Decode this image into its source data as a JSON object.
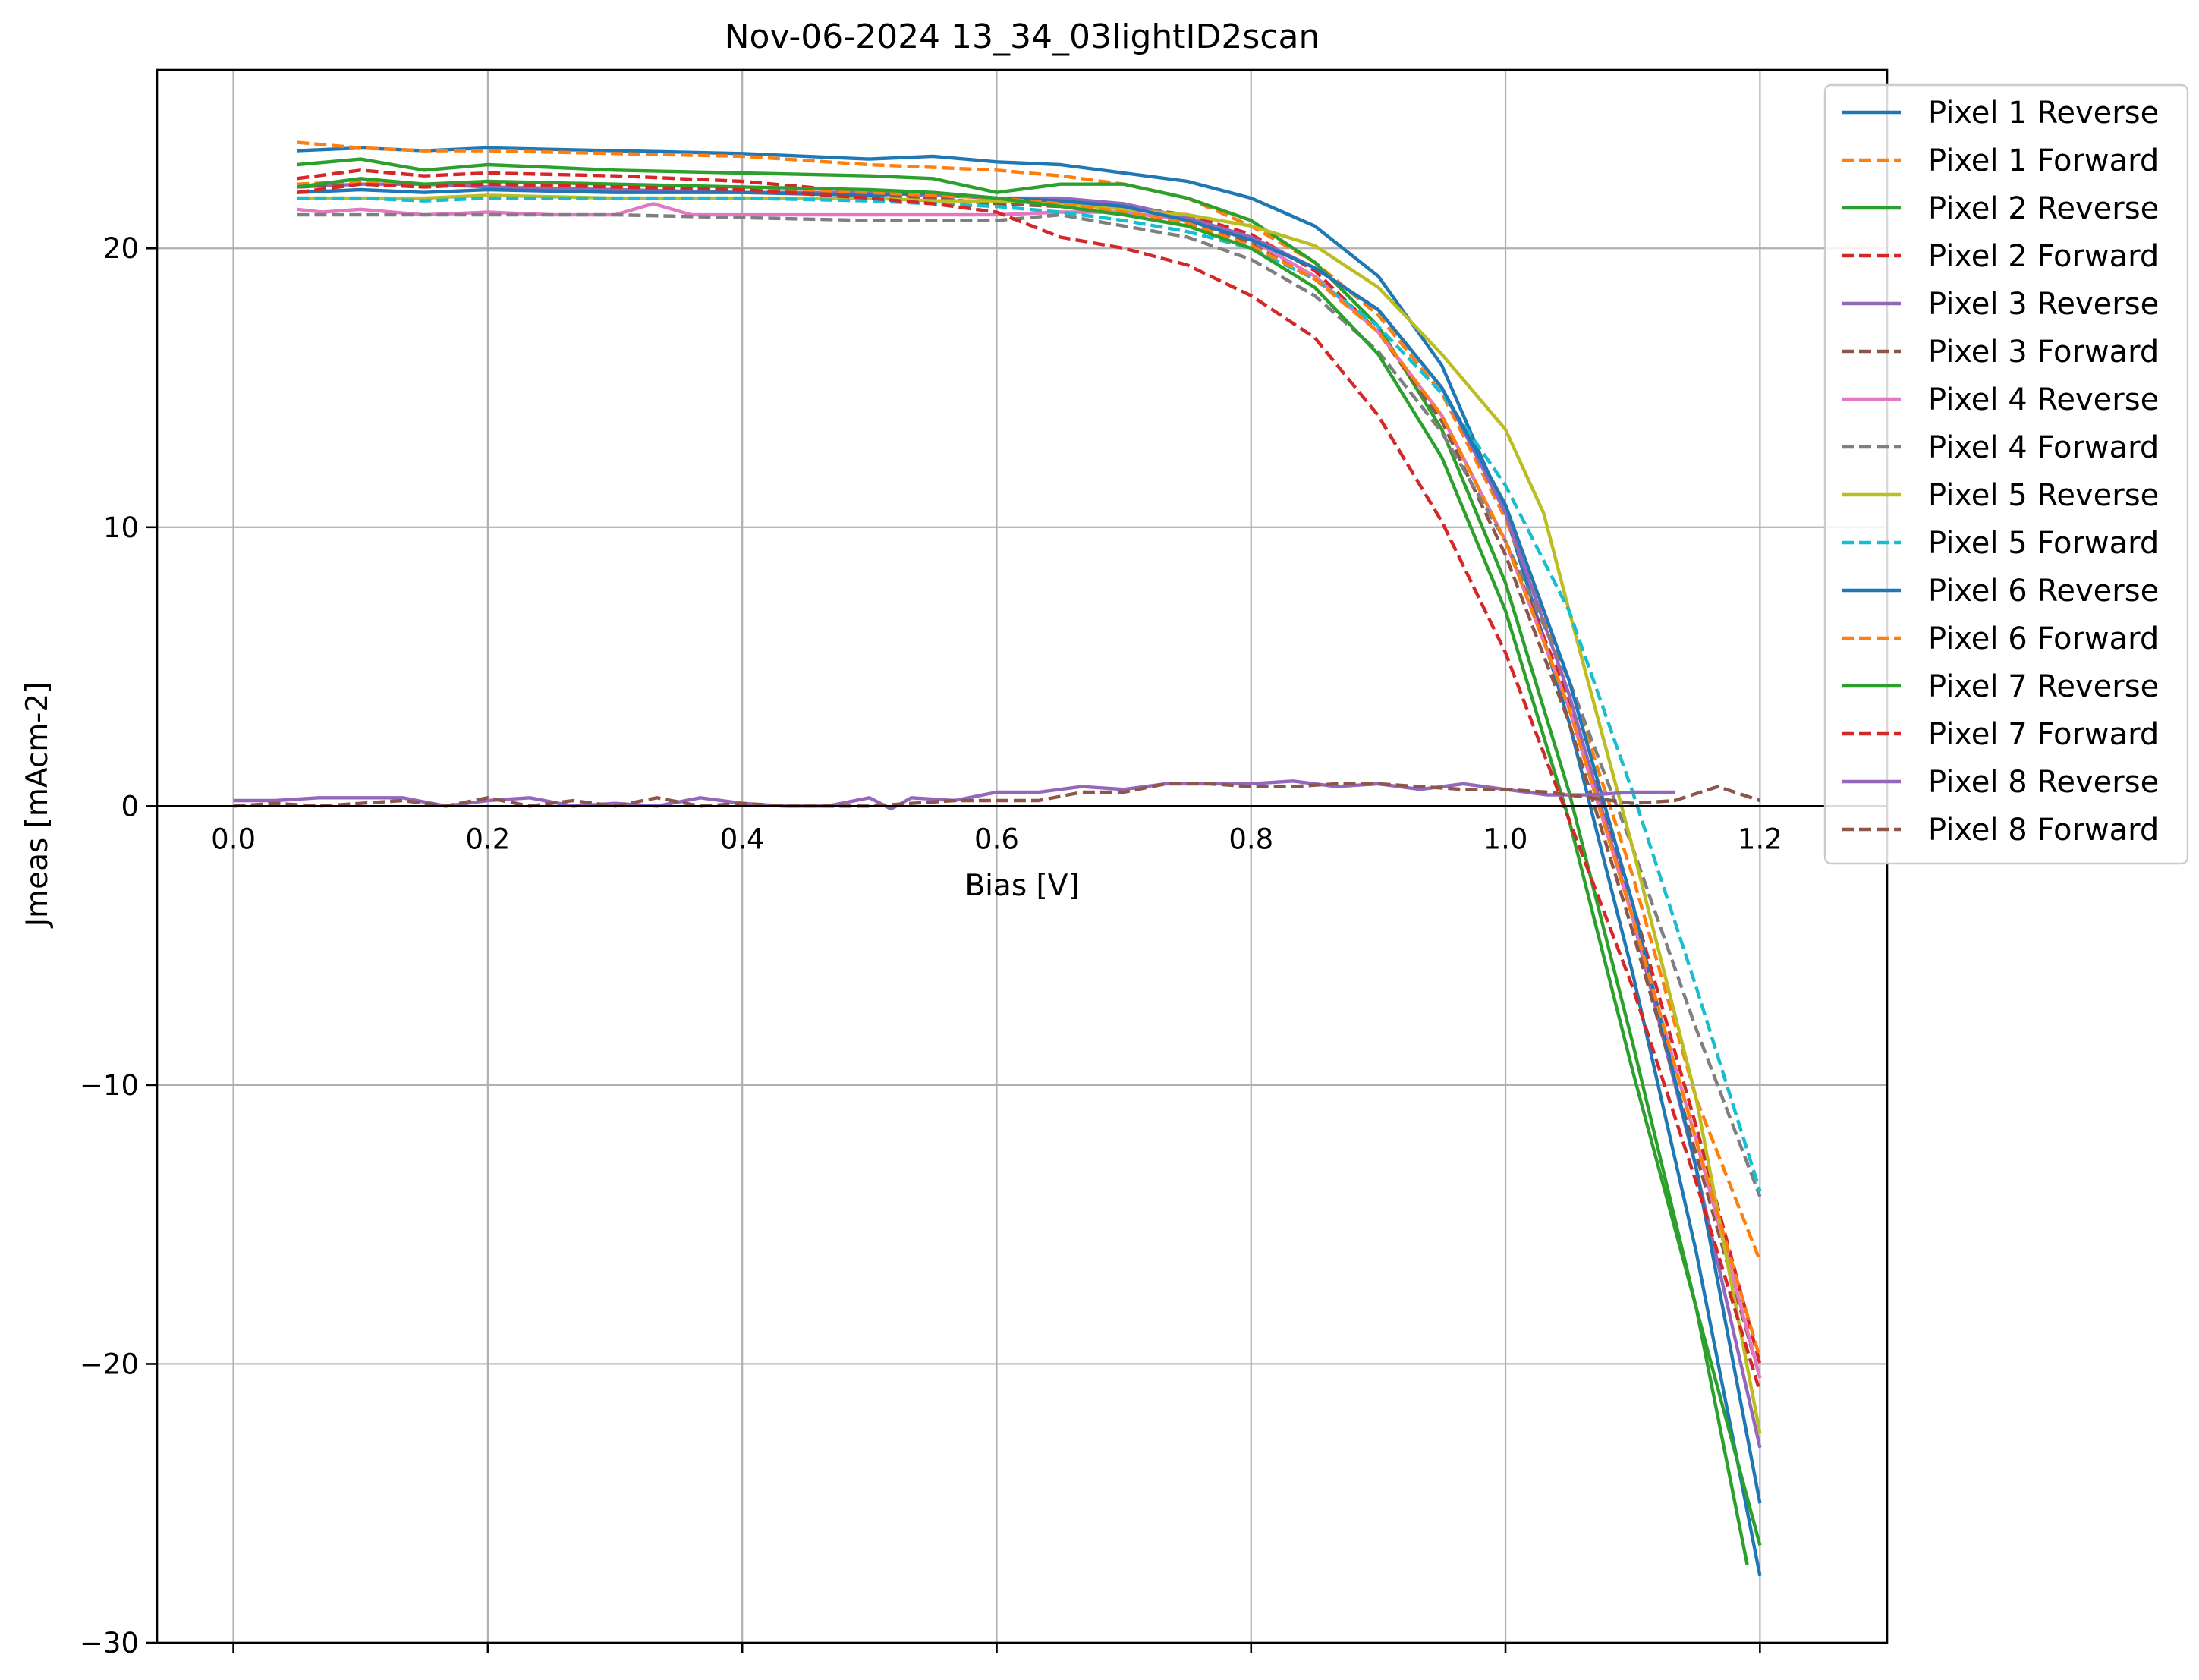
{
  "chart_data": {
    "type": "line",
    "title": "Nov-06-2024 13_34_03lightID2scan",
    "xlabel": "Bias [V]",
    "ylabel": "Jmeas [mAcm-2]",
    "xlim": [
      -0.06,
      1.3
    ],
    "ylim": [
      -30,
      26.4
    ],
    "xticks": [
      0.0,
      0.2,
      0.4,
      0.6,
      0.8,
      1.0,
      1.2
    ],
    "xtick_labels": [
      "0.0",
      "0.2",
      "0.4",
      "0.6",
      "0.8",
      "1.0",
      "1.2"
    ],
    "yticks": [
      20,
      10,
      0,
      -10,
      -20,
      -30
    ],
    "ytick_labels": [
      "20",
      "10",
      "0",
      "−10",
      "−20",
      "−30"
    ],
    "grid": true,
    "legend_position": "top-right",
    "series": [
      {
        "name": "Pixel 1 Reverse",
        "color": "#1f77b4",
        "dash": "solid",
        "x": [
          0.05,
          0.1,
          0.15,
          0.2,
          0.3,
          0.4,
          0.5,
          0.55,
          0.6,
          0.65,
          0.7,
          0.75,
          0.8,
          0.85,
          0.9,
          0.95,
          1.0,
          1.05,
          1.1,
          1.15,
          1.2
        ],
        "y": [
          23.5,
          23.6,
          23.5,
          23.6,
          23.5,
          23.4,
          23.2,
          23.3,
          23.1,
          23.0,
          22.7,
          22.4,
          21.8,
          20.8,
          19.0,
          15.8,
          10.5,
          3.0,
          -6.0,
          -16.0,
          -27.6
        ]
      },
      {
        "name": "Pixel 1 Forward",
        "color": "#ff7f0e",
        "dash": "dashed",
        "x": [
          0.05,
          0.1,
          0.15,
          0.2,
          0.3,
          0.4,
          0.5,
          0.55,
          0.6,
          0.65,
          0.7,
          0.75,
          0.8,
          0.85,
          0.9,
          0.95,
          1.0,
          1.05,
          1.1,
          1.15,
          1.2
        ],
        "y": [
          23.8,
          23.6,
          23.5,
          23.5,
          23.4,
          23.3,
          23.0,
          22.9,
          22.8,
          22.6,
          22.3,
          21.8,
          20.8,
          19.5,
          17.6,
          14.8,
          10.3,
          4.5,
          -2.5,
          -10.5,
          -16.3
        ]
      },
      {
        "name": "Pixel 2 Reverse",
        "color": "#2ca02c",
        "dash": "solid",
        "x": [
          0.05,
          0.1,
          0.15,
          0.2,
          0.3,
          0.4,
          0.5,
          0.55,
          0.6,
          0.65,
          0.7,
          0.75,
          0.8,
          0.85,
          0.9,
          0.95,
          1.0,
          1.05,
          1.1,
          1.15,
          1.19
        ],
        "y": [
          23.0,
          23.2,
          22.8,
          23.0,
          22.8,
          22.7,
          22.6,
          22.5,
          22.0,
          22.3,
          22.3,
          21.8,
          21.0,
          19.5,
          17.2,
          13.5,
          8.0,
          0.5,
          -8.5,
          -18.0,
          -27.2
        ]
      },
      {
        "name": "Pixel 2 Forward",
        "color": "#d62728",
        "dash": "dashed",
        "x": [
          0.05,
          0.1,
          0.15,
          0.2,
          0.3,
          0.4,
          0.5,
          0.55,
          0.6,
          0.65,
          0.7,
          0.75,
          0.8,
          0.85,
          0.9,
          0.95,
          1.0,
          1.05,
          1.1,
          1.15,
          1.2
        ],
        "y": [
          22.5,
          22.8,
          22.6,
          22.7,
          22.6,
          22.4,
          22.0,
          21.8,
          21.6,
          21.8,
          21.5,
          21.2,
          20.5,
          19.2,
          17.0,
          14.0,
          9.5,
          3.8,
          -3.5,
          -11.5,
          -20.0
        ]
      },
      {
        "name": "Pixel 3 Reverse",
        "color": "#9467bd",
        "dash": "solid",
        "x": [
          0.05,
          0.1,
          0.15,
          0.2,
          0.3,
          0.4,
          0.5,
          0.55,
          0.6,
          0.65,
          0.7,
          0.75,
          0.8,
          0.85,
          0.9,
          0.95,
          1.0,
          1.05,
          1.1,
          1.15,
          1.2
        ],
        "y": [
          22.2,
          22.3,
          22.3,
          22.2,
          22.1,
          22.0,
          22.0,
          21.9,
          21.8,
          21.8,
          21.6,
          21.1,
          20.4,
          19.3,
          17.8,
          15.0,
          10.5,
          4.0,
          -4.0,
          -13.0,
          -23.0
        ]
      },
      {
        "name": "Pixel 3 Forward",
        "color": "#8c564b",
        "dash": "dashed",
        "x": [
          0.05,
          0.1,
          0.15,
          0.2,
          0.3,
          0.4,
          0.5,
          0.55,
          0.6,
          0.65,
          0.7,
          0.75,
          0.8,
          0.85,
          0.9,
          0.95,
          1.0,
          1.05,
          1.1,
          1.15,
          1.2
        ],
        "y": [
          22.2,
          22.3,
          22.2,
          22.3,
          22.2,
          22.1,
          21.9,
          21.8,
          21.6,
          21.5,
          21.3,
          20.9,
          20.2,
          19.0,
          17.0,
          13.8,
          9.0,
          3.0,
          -4.5,
          -12.5,
          -20.5
        ]
      },
      {
        "name": "Pixel 4 Reverse",
        "color": "#e377c2",
        "dash": "solid",
        "x": [
          0.05,
          0.07,
          0.1,
          0.15,
          0.2,
          0.25,
          0.3,
          0.33,
          0.36,
          0.4,
          0.5,
          0.6,
          0.65,
          0.7,
          0.75,
          0.8,
          0.85,
          0.9,
          0.95,
          1.0,
          1.05,
          1.1,
          1.15,
          1.2
        ],
        "y": [
          21.4,
          21.3,
          21.4,
          21.2,
          21.3,
          21.2,
          21.2,
          21.6,
          21.2,
          21.2,
          21.2,
          21.2,
          21.3,
          21.3,
          21.0,
          20.3,
          19.0,
          17.0,
          14.0,
          9.5,
          3.5,
          -4.0,
          -12.0,
          -20.5
        ]
      },
      {
        "name": "Pixel 4 Forward",
        "color": "#7f7f7f",
        "dash": "dashed",
        "x": [
          0.05,
          0.1,
          0.15,
          0.2,
          0.3,
          0.4,
          0.5,
          0.55,
          0.6,
          0.65,
          0.7,
          0.75,
          0.8,
          0.85,
          0.9,
          0.95,
          1.0,
          1.05,
          1.1,
          1.15,
          1.2
        ],
        "y": [
          21.2,
          21.2,
          21.2,
          21.2,
          21.2,
          21.1,
          21.0,
          21.0,
          21.0,
          21.2,
          20.8,
          20.4,
          19.6,
          18.3,
          16.3,
          13.4,
          9.5,
          4.5,
          -1.5,
          -8.0,
          -14.0
        ]
      },
      {
        "name": "Pixel 5 Reverse",
        "color": "#bcbd22",
        "dash": "solid",
        "x": [
          0.05,
          0.1,
          0.15,
          0.2,
          0.3,
          0.4,
          0.5,
          0.55,
          0.6,
          0.65,
          0.7,
          0.75,
          0.8,
          0.85,
          0.9,
          0.95,
          1.0,
          1.03,
          1.05,
          1.1,
          1.15,
          1.2
        ],
        "y": [
          21.8,
          21.8,
          21.8,
          21.9,
          21.8,
          21.8,
          21.8,
          21.7,
          21.7,
          21.6,
          21.4,
          21.2,
          20.8,
          20.1,
          18.6,
          16.2,
          13.5,
          10.5,
          7.0,
          -1.5,
          -10.5,
          -22.5
        ]
      },
      {
        "name": "Pixel 5 Forward",
        "color": "#17becf",
        "dash": "dashed",
        "x": [
          0.05,
          0.1,
          0.15,
          0.2,
          0.3,
          0.4,
          0.5,
          0.55,
          0.6,
          0.65,
          0.7,
          0.75,
          0.8,
          0.85,
          0.9,
          0.95,
          1.0,
          1.05,
          1.1,
          1.15,
          1.2
        ],
        "y": [
          21.8,
          21.8,
          21.7,
          21.8,
          21.8,
          21.8,
          21.7,
          21.6,
          21.5,
          21.3,
          21.0,
          20.6,
          20.0,
          18.9,
          17.2,
          14.8,
          11.5,
          7.0,
          0.5,
          -6.5,
          -13.8
        ]
      },
      {
        "name": "Pixel 6 Reverse",
        "color": "#1f77b4",
        "dash": "solid",
        "x": [
          0.05,
          0.1,
          0.15,
          0.2,
          0.3,
          0.4,
          0.5,
          0.55,
          0.6,
          0.65,
          0.7,
          0.75,
          0.8,
          0.85,
          0.9,
          0.95,
          1.0,
          1.05,
          1.1,
          1.15,
          1.2
        ],
        "y": [
          22.0,
          22.1,
          22.0,
          22.1,
          22.0,
          22.0,
          21.9,
          22.0,
          21.8,
          21.7,
          21.5,
          21.0,
          20.3,
          19.3,
          17.8,
          15.0,
          10.8,
          4.5,
          -3.5,
          -13.0,
          -25.0
        ]
      },
      {
        "name": "Pixel 6 Forward",
        "color": "#ff7f0e",
        "dash": "dashed",
        "x": [
          0.05,
          0.1,
          0.15,
          0.2,
          0.3,
          0.4,
          0.5,
          0.55,
          0.6,
          0.65,
          0.7,
          0.75,
          0.8,
          0.85,
          0.9,
          0.95,
          1.0,
          1.05,
          1.1,
          1.15,
          1.2
        ],
        "y": [
          22.3,
          22.4,
          22.3,
          22.3,
          22.2,
          22.2,
          22.0,
          21.9,
          21.8,
          21.6,
          21.3,
          20.9,
          20.1,
          18.9,
          17.0,
          14.0,
          9.5,
          3.5,
          -4.0,
          -12.0,
          -19.8
        ]
      },
      {
        "name": "Pixel 7 Reverse",
        "color": "#2ca02c",
        "dash": "solid",
        "x": [
          0.05,
          0.1,
          0.15,
          0.2,
          0.3,
          0.4,
          0.5,
          0.55,
          0.6,
          0.65,
          0.7,
          0.75,
          0.8,
          0.85,
          0.9,
          0.95,
          1.0,
          1.05,
          1.1,
          1.15,
          1.2
        ],
        "y": [
          22.2,
          22.5,
          22.3,
          22.4,
          22.3,
          22.2,
          22.1,
          22.0,
          21.8,
          21.5,
          21.2,
          20.8,
          20.0,
          18.6,
          16.2,
          12.5,
          7.0,
          -0.5,
          -9.5,
          -18.0,
          -26.5
        ]
      },
      {
        "name": "Pixel 7 Forward",
        "color": "#d62728",
        "dash": "dashed",
        "x": [
          0.05,
          0.1,
          0.15,
          0.2,
          0.3,
          0.4,
          0.5,
          0.55,
          0.6,
          0.65,
          0.7,
          0.75,
          0.8,
          0.85,
          0.9,
          0.95,
          1.0,
          1.05,
          1.1,
          1.15,
          1.2
        ],
        "y": [
          22.0,
          22.3,
          22.2,
          22.3,
          22.2,
          22.1,
          21.8,
          21.6,
          21.3,
          20.4,
          20.0,
          19.4,
          18.3,
          16.8,
          14.0,
          10.2,
          5.5,
          -0.5,
          -6.5,
          -13.5,
          -21.0
        ]
      },
      {
        "name": "Pixel 8 Reverse",
        "color": "#9467bd",
        "dash": "solid",
        "x": [
          0.0,
          0.033,
          0.067,
          0.1,
          0.133,
          0.167,
          0.2,
          0.233,
          0.267,
          0.3,
          0.333,
          0.367,
          0.4,
          0.433,
          0.467,
          0.5,
          0.517,
          0.533,
          0.567,
          0.6,
          0.633,
          0.667,
          0.7,
          0.733,
          0.767,
          0.8,
          0.833,
          0.867,
          0.9,
          0.933,
          0.967,
          1.0,
          1.033,
          1.067,
          1.1,
          1.133
        ],
        "y": [
          0.2,
          0.2,
          0.3,
          0.3,
          0.3,
          0.0,
          0.2,
          0.3,
          0.0,
          0.1,
          0.0,
          0.3,
          0.1,
          0.0,
          0.0,
          0.3,
          -0.1,
          0.3,
          0.2,
          0.5,
          0.5,
          0.7,
          0.6,
          0.8,
          0.8,
          0.8,
          0.9,
          0.7,
          0.8,
          0.6,
          0.8,
          0.6,
          0.4,
          0.4,
          0.5,
          0.5
        ]
      },
      {
        "name": "Pixel 8 Forward",
        "color": "#8c564b",
        "dash": "dashed",
        "x": [
          0.0,
          0.033,
          0.067,
          0.1,
          0.133,
          0.167,
          0.2,
          0.233,
          0.267,
          0.3,
          0.333,
          0.367,
          0.4,
          0.433,
          0.467,
          0.5,
          0.533,
          0.567,
          0.6,
          0.633,
          0.667,
          0.7,
          0.733,
          0.767,
          0.8,
          0.833,
          0.867,
          0.9,
          0.933,
          0.967,
          1.0,
          1.033,
          1.067,
          1.1,
          1.133,
          1.167,
          1.2
        ],
        "y": [
          0.0,
          0.1,
          0.0,
          0.1,
          0.2,
          0.0,
          0.3,
          0.0,
          0.2,
          0.0,
          0.3,
          0.0,
          0.1,
          0.0,
          0.0,
          0.0,
          0.1,
          0.2,
          0.2,
          0.2,
          0.5,
          0.5,
          0.8,
          0.8,
          0.7,
          0.7,
          0.8,
          0.8,
          0.7,
          0.6,
          0.6,
          0.5,
          0.3,
          0.1,
          0.2,
          0.7,
          0.2
        ]
      }
    ]
  }
}
